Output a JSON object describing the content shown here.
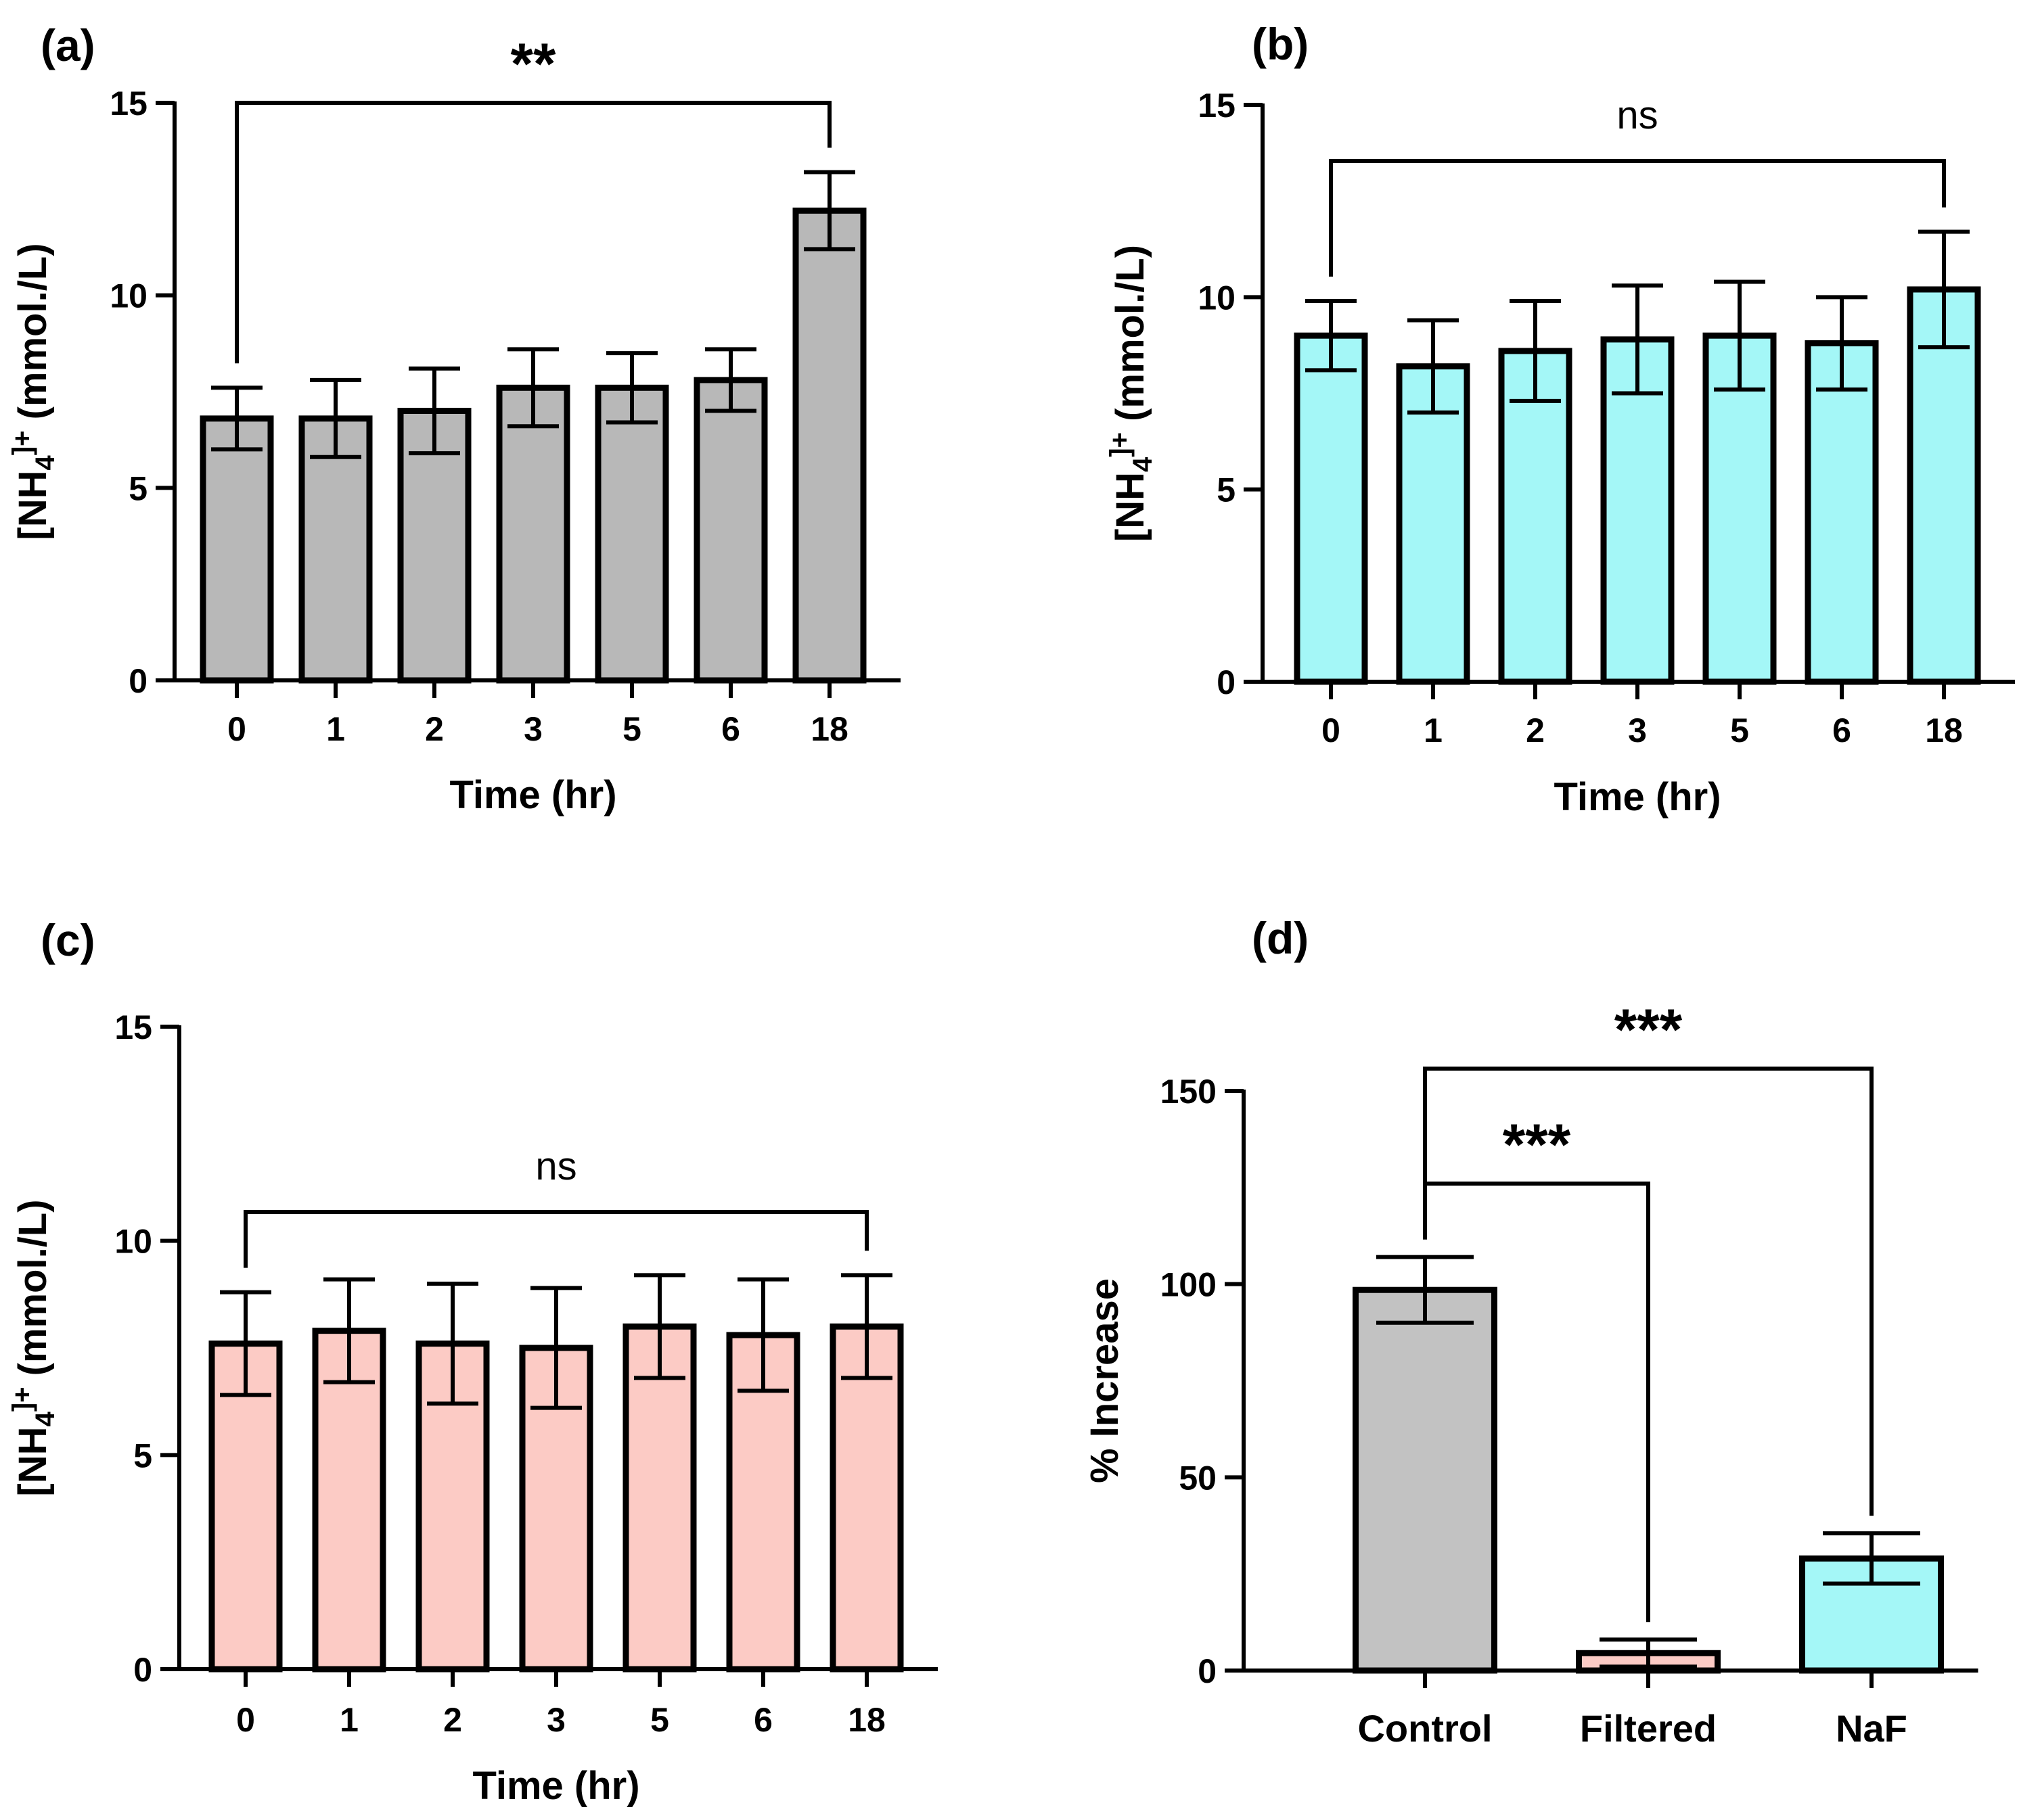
{
  "figure": {
    "description_free": true
  },
  "chart_data": [
    {
      "panel": "(a)",
      "type": "bar",
      "categories": [
        "0",
        "1",
        "2",
        "3",
        "5",
        "6",
        "18"
      ],
      "values": [
        6.8,
        6.8,
        7.0,
        7.6,
        7.6,
        7.8,
        12.2
      ],
      "errors": [
        0.8,
        1.0,
        1.1,
        1.0,
        0.9,
        0.8,
        1.0
      ],
      "bar_color": "#b8b8b8",
      "xlabel": "Time (hr)",
      "ylabel_main": "[NH",
      "ylabel_sub": "4",
      "ylabel_sup": "]+",
      "ylabel_tail": " (mmol./L)",
      "ylim": [
        0,
        15
      ],
      "yticks": [
        "0",
        "5",
        "10",
        "15"
      ],
      "brackets": [
        {
          "from": 0,
          "to": 6,
          "label": "**"
        }
      ]
    },
    {
      "panel": "(b)",
      "type": "bar",
      "categories": [
        "0",
        "1",
        "2",
        "3",
        "5",
        "6",
        "18"
      ],
      "values": [
        9.0,
        8.2,
        8.6,
        8.9,
        9.0,
        8.8,
        10.2
      ],
      "errors": [
        0.9,
        1.2,
        1.3,
        1.4,
        1.4,
        1.2,
        1.5
      ],
      "bar_color": "#a4f7f7",
      "xlabel": "Time (hr)",
      "ylabel_main": "[NH",
      "ylabel_sub": "4",
      "ylabel_sup": "]+",
      "ylabel_tail": " (mmol./L)",
      "ylim": [
        0,
        15
      ],
      "yticks": [
        "0",
        "5",
        "10",
        "15"
      ],
      "brackets": [
        {
          "from": 0,
          "to": 6,
          "label": "ns"
        }
      ]
    },
    {
      "panel": "(c)",
      "type": "bar",
      "categories": [
        "0",
        "1",
        "2",
        "3",
        "5",
        "6",
        "18"
      ],
      "values": [
        7.6,
        7.9,
        7.6,
        7.5,
        8.0,
        7.8,
        8.0
      ],
      "errors": [
        1.2,
        1.2,
        1.4,
        1.4,
        1.2,
        1.3,
        1.2
      ],
      "bar_color": "#fccbc5",
      "xlabel": "Time (hr)",
      "ylabel_main": "[NH",
      "ylabel_sub": "4",
      "ylabel_sup": "]+",
      "ylabel_tail": " (mmol./L)",
      "ylim": [
        0,
        15
      ],
      "yticks": [
        "0",
        "5",
        "10",
        "15"
      ],
      "brackets": [
        {
          "from": 0,
          "to": 6,
          "label": "ns"
        }
      ]
    },
    {
      "panel": "(d)",
      "type": "bar",
      "categories": [
        "Control",
        "Filtered",
        "NaF"
      ],
      "values": [
        98.5,
        4.5,
        29
      ],
      "errors": [
        8.5,
        3.5,
        6.5
      ],
      "bar_colors": [
        "#c2c2c2",
        "#fccbc5",
        "#a4f7f7"
      ],
      "xlabel": "",
      "ylabel": "% Increase",
      "ylim": [
        0,
        150
      ],
      "yticks": [
        "0",
        "50",
        "100",
        "150"
      ],
      "brackets": [
        {
          "from": 0,
          "to": 1,
          "label": "***"
        },
        {
          "from": 0,
          "to": 2,
          "label": "***"
        }
      ]
    }
  ]
}
